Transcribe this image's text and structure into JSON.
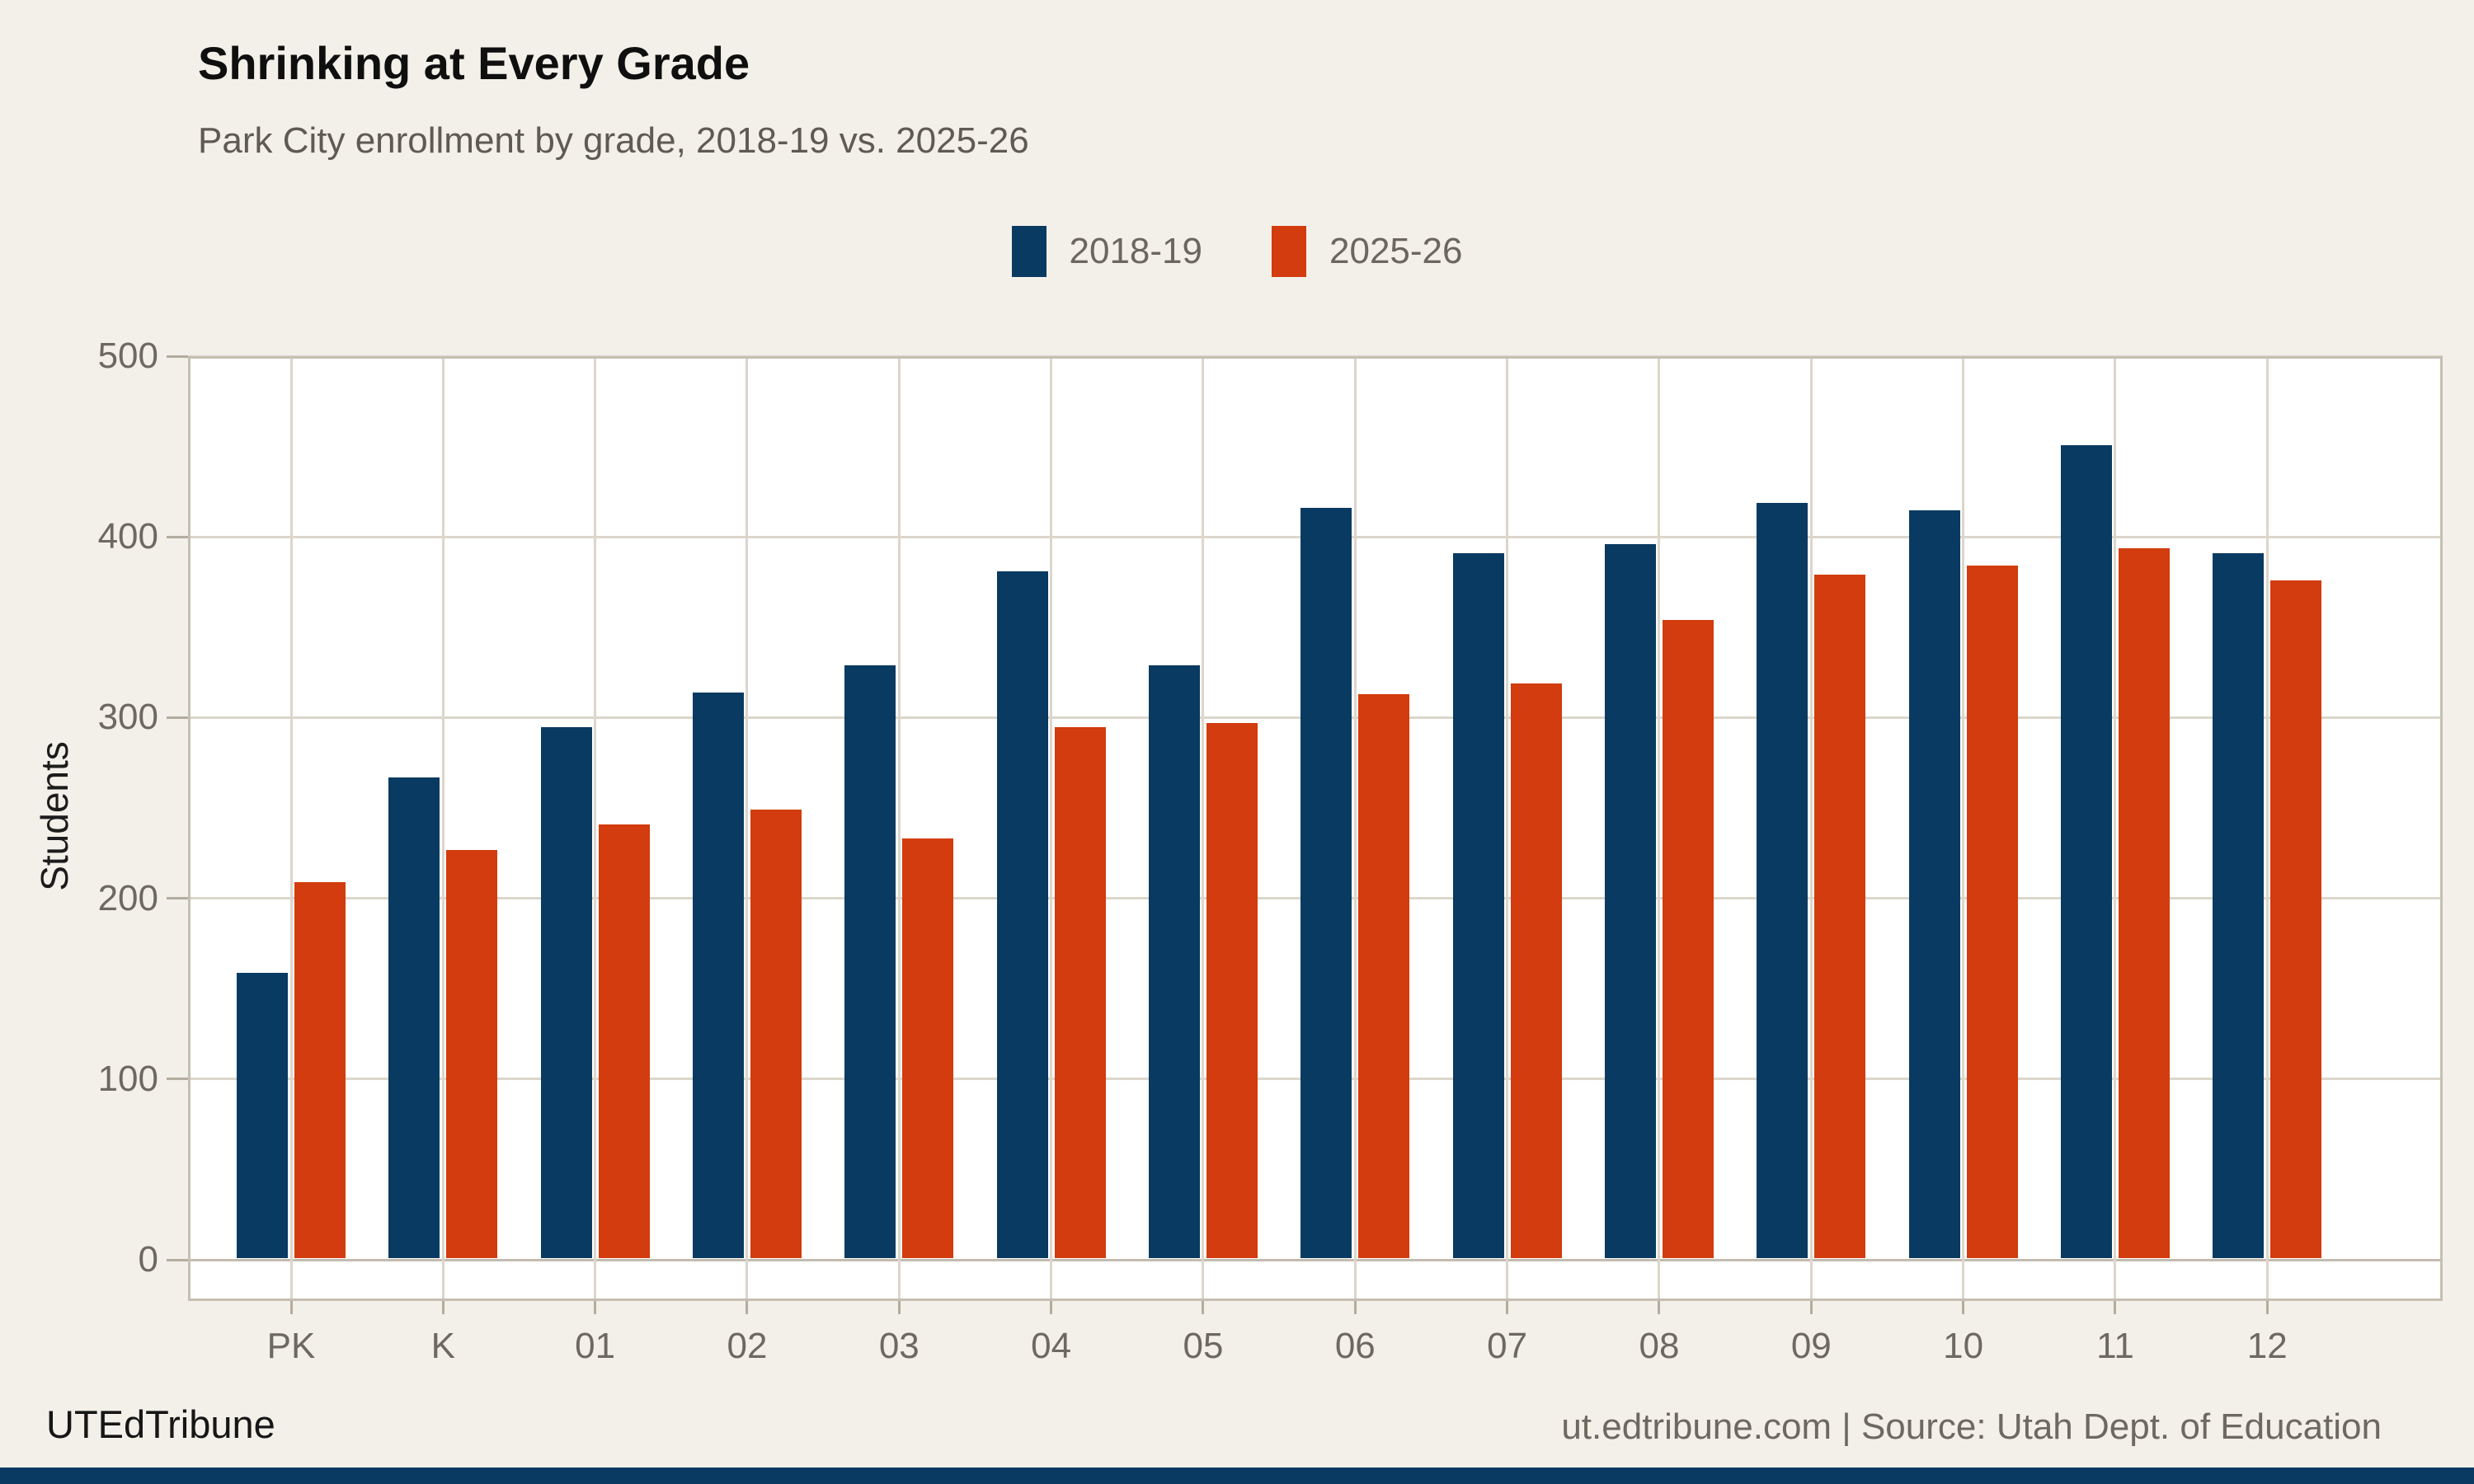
{
  "title": "Shrinking at Every Grade",
  "subtitle": "Park City enrollment by grade, 2018-19 vs. 2025-26",
  "legend": [
    {
      "label": "2018-19",
      "color": "#093a61"
    },
    {
      "label": "2025-26",
      "color": "#d23c0e"
    }
  ],
  "y_axis_title": "Students",
  "footer": {
    "brand": "UTEdTribune",
    "source": "ut.edtribune.com | Source: Utah Dept. of Education"
  },
  "colors": {
    "background": "#f3f0e9",
    "plot_background": "#ffffff",
    "series_2018": "#093a61",
    "series_2025": "#d23c0e",
    "gridline": "#dcd6cb",
    "axis_line": "#c6bfb2",
    "tick": "#b3ac9f",
    "label_gray": "#6e6960"
  },
  "chart_data": {
    "type": "bar",
    "title": "Shrinking at Every Grade",
    "subtitle": "Park City enrollment by grade, 2018-19 vs. 2025-26",
    "categories": [
      "PK",
      "K",
      "01",
      "02",
      "03",
      "04",
      "05",
      "06",
      "07",
      "08",
      "09",
      "10",
      "11",
      "12"
    ],
    "series": [
      {
        "name": "2018-19",
        "color": "#093a61",
        "values": [
          158,
          266,
          294,
          313,
          328,
          380,
          328,
          415,
          390,
          395,
          418,
          414,
          450,
          390
        ]
      },
      {
        "name": "2025-26",
        "color": "#d23c0e",
        "values": [
          208,
          226,
          240,
          248,
          232,
          294,
          296,
          312,
          318,
          353,
          378,
          383,
          393,
          375
        ]
      }
    ],
    "xlabel": "",
    "ylabel": "Students",
    "ylim": [
      0,
      500
    ],
    "yticks": [
      0,
      100,
      200,
      300,
      400,
      500
    ],
    "grid": true,
    "legend_position": "top"
  }
}
